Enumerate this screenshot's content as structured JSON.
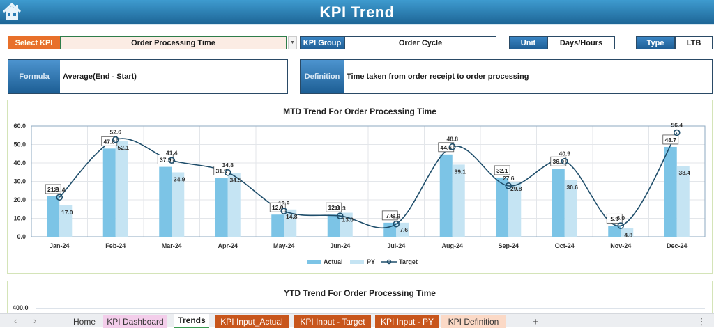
{
  "header": {
    "title": "KPI Trend",
    "home_icon": "home-icon"
  },
  "filters": {
    "select_kpi_label": "Select KPI",
    "select_kpi_value": "Order Processing Time",
    "kpi_group_label": "KPI Group",
    "kpi_group_value": "Order Cycle",
    "unit_label": "Unit",
    "unit_value": "Days/Hours",
    "type_label": "Type",
    "type_value": "LTB"
  },
  "info": {
    "formula_label": "Formula",
    "formula_value": "Average(End - Start)",
    "definition_label": "Definition",
    "definition_value": "Time taken from order receipt to order processing"
  },
  "colors": {
    "banner": "#2a7db5",
    "actual": "#7cc4e6",
    "py": "#c5e4f3",
    "target": "#1f4e6b",
    "select_kpi": "#e8702a"
  },
  "chart_data": [
    {
      "type": "bar",
      "title": "MTD Trend For Order Processing Time",
      "categories": [
        "Jan-24",
        "Feb-24",
        "Mar-24",
        "Apr-24",
        "May-24",
        "Jun-24",
        "Jul-24",
        "Aug-24",
        "Sep-24",
        "Oct-24",
        "Nov-24",
        "Dec-24"
      ],
      "series": [
        {
          "name": "Actual",
          "type": "bar",
          "values": [
            21.9,
            47.8,
            37.9,
            31.9,
            12.0,
            12.0,
            7.6,
            44.6,
            32.1,
            36.9,
            5.9,
            48.7
          ]
        },
        {
          "name": "PY",
          "type": "bar",
          "values": [
            17.0,
            52.1,
            34.9,
            34.5,
            14.8,
            13.0,
            7.6,
            39.1,
            29.8,
            30.6,
            4.8,
            38.4
          ]
        },
        {
          "name": "Target",
          "type": "line",
          "values": [
            21.4,
            52.6,
            41.4,
            34.8,
            13.9,
            11.3,
            6.9,
            48.8,
            27.6,
            40.9,
            6.0,
            56.4
          ]
        }
      ],
      "yticks": [
        "0.0",
        "10.0",
        "20.0",
        "30.0",
        "40.0",
        "50.0",
        "60.0"
      ],
      "ylim": [
        0,
        60
      ],
      "legend": [
        "Actual",
        "PY",
        "Target"
      ],
      "legend_position": "bottom",
      "grid": true
    },
    {
      "type": "bar",
      "title": "YTD Trend For Order Processing Time",
      "yticks_visible": [
        "400.0"
      ]
    }
  ],
  "sheet_tabs": [
    {
      "label": "Home",
      "bg": "transparent",
      "color": "#333"
    },
    {
      "label": "KPI Dashboard",
      "bg": "#f3cdea",
      "color": "#333"
    },
    {
      "label": "Trends",
      "bg": "#ffffff",
      "color": "#222"
    },
    {
      "label": "KPI Input_Actual",
      "bg": "#c8561c",
      "color": "#ffffff"
    },
    {
      "label": "KPI Input - Target",
      "bg": "#c8561c",
      "color": "#ffffff"
    },
    {
      "label": "KPI Input - PY",
      "bg": "#c8561c",
      "color": "#ffffff"
    },
    {
      "label": "KPI Definition",
      "bg": "#fbd9c6",
      "color": "#333"
    }
  ],
  "sheet_nav": {
    "prev": "‹",
    "next": "›",
    "add": "+",
    "more": "⋮"
  }
}
